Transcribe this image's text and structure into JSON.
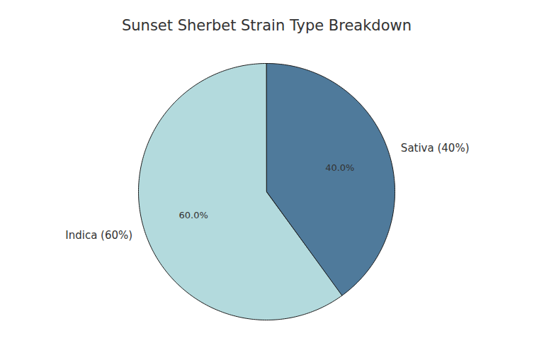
{
  "chart_data": {
    "type": "pie",
    "title": "Sunset Sherbet Strain Type Breakdown",
    "categories": [
      "Indica (60%)",
      "Sativa (40%)"
    ],
    "values": [
      60,
      40
    ],
    "value_labels": [
      "60.0%",
      "40.0%"
    ],
    "colors": [
      "#b3dadd",
      "#4f7a9b"
    ],
    "data_labels": true
  }
}
